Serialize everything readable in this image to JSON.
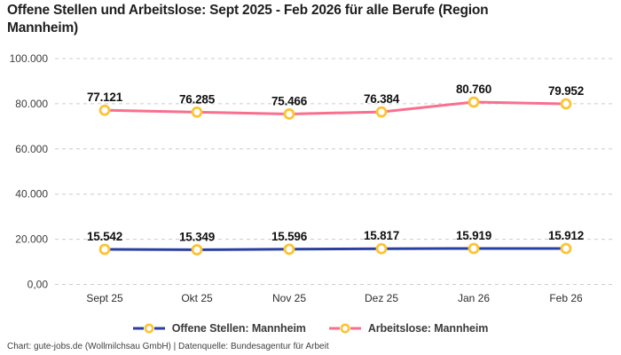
{
  "title": "Offene Stellen und Arbeitslose: Sept 2025 - Feb 2026 für alle Berufe (Region Mannheim)",
  "footer": "Chart: gute-jobs.de (Wollmilchsau GmbH) | Datenquelle: Bundesagentur für Arbeit",
  "colors": {
    "open_positions": "#2b3fa0",
    "unemployed": "#f8708e",
    "marker_ring": "#fbc437",
    "marker_fill": "#ffffff",
    "grid": "#cccccc",
    "tick_text": "#3d3d3d",
    "data_label_text": "#111111"
  },
  "chart_data": {
    "type": "line",
    "title": "Offene Stellen und Arbeitslose: Sept 2025 - Feb 2026 für alle Berufe (Region Mannheim)",
    "categories": [
      "Sept 25",
      "Okt 25",
      "Nov 25",
      "Dez 25",
      "Jan 26",
      "Feb 26"
    ],
    "series": [
      {
        "name": "Offene Stellen: Mannheim",
        "color_key": "open_positions",
        "values": [
          15542,
          15349,
          15596,
          15817,
          15919,
          15912
        ],
        "labels": [
          "15.542",
          "15.349",
          "15.596",
          "15.817",
          "15.919",
          "15.912"
        ]
      },
      {
        "name": "Arbeitslose: Mannheim",
        "color_key": "unemployed",
        "values": [
          77121,
          76285,
          75466,
          76384,
          80760,
          79952
        ],
        "labels": [
          "77.121",
          "76.285",
          "75.466",
          "76.384",
          "80.760",
          "79.952"
        ]
      }
    ],
    "xlabel": "",
    "ylabel": "",
    "ylim": [
      0,
      100000
    ],
    "yticks": {
      "values": [
        0,
        20000,
        40000,
        60000,
        80000,
        100000
      ],
      "labels": [
        "0,00",
        "20.000",
        "40.000",
        "60.000",
        "80.000",
        "100.000"
      ]
    },
    "grid": true,
    "grid_style": "dashed",
    "legend_position": "bottom",
    "marker": "circle"
  },
  "legend": {
    "items": [
      {
        "label": "Offene Stellen: Mannheim"
      },
      {
        "label": "Arbeitslose: Mannheim"
      }
    ]
  }
}
